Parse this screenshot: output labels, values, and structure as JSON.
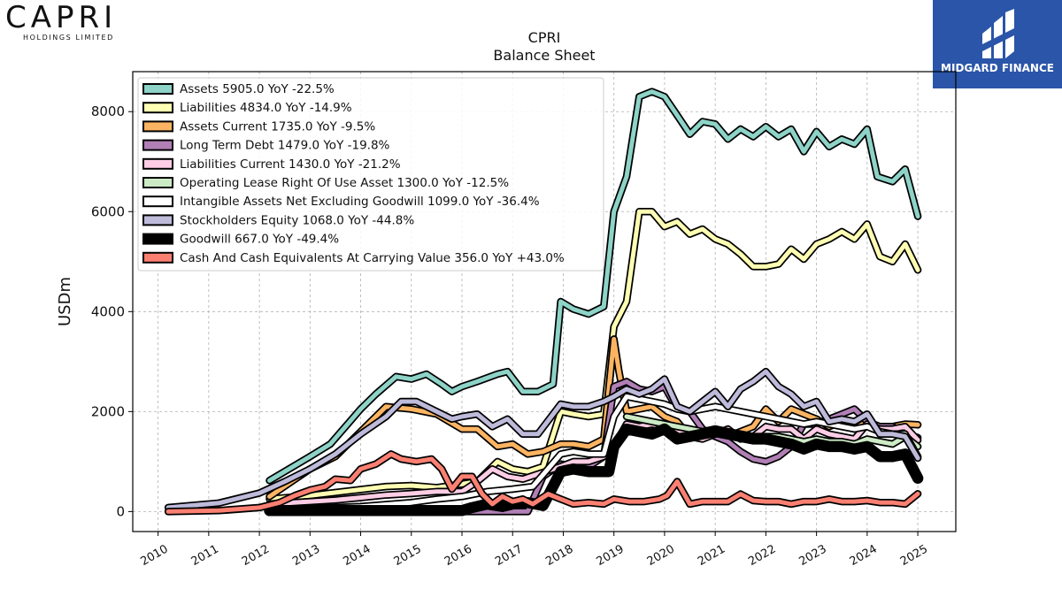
{
  "branding": {
    "company_name": "CAPRI",
    "company_sub": "HOLDINGS LIMITED",
    "publisher": "MIDGARD FINANCE"
  },
  "chart_data": {
    "type": "line",
    "title": "CPRI",
    "subtitle": "Balance  Sheet",
    "ylabel": "USDm",
    "xlabel": "",
    "ylim": [
      -400,
      8800
    ],
    "xlim": [
      2009.5,
      2025.75
    ],
    "yticks": [
      0,
      2000,
      4000,
      6000,
      8000
    ],
    "xticks": [
      2010,
      2011,
      2012,
      2013,
      2014,
      2015,
      2016,
      2017,
      2018,
      2019,
      2020,
      2021,
      2022,
      2023,
      2024,
      2025
    ],
    "grid": true,
    "legend_position": "top-left",
    "series": [
      {
        "name": "Assets",
        "legend": "Assets  5905.0 YoY -22.5%",
        "color": "#8dd3c7",
        "width": 5,
        "x": [
          2012.2,
          2013.0,
          2013.4,
          2013.7,
          2014.0,
          2014.3,
          2014.7,
          2015.0,
          2015.3,
          2015.6,
          2015.8,
          2016.0,
          2016.3,
          2016.7,
          2016.9,
          2017.2,
          2017.5,
          2017.8,
          2017.95,
          2018.2,
          2018.5,
          2018.8,
          2019.0,
          2019.25,
          2019.5,
          2019.75,
          2020.0,
          2020.2,
          2020.5,
          2020.75,
          2021.0,
          2021.25,
          2021.5,
          2021.75,
          2022.0,
          2022.25,
          2022.5,
          2022.75,
          2023.0,
          2023.25,
          2023.5,
          2023.75,
          2024.0,
          2024.2,
          2024.5,
          2024.75,
          2025.0
        ],
        "y": [
          620,
          1100,
          1350,
          1700,
          2050,
          2350,
          2700,
          2650,
          2750,
          2550,
          2400,
          2500,
          2600,
          2750,
          2800,
          2400,
          2400,
          2550,
          4200,
          4050,
          3950,
          4100,
          6000,
          6700,
          8300,
          8400,
          8300,
          8000,
          7550,
          7800,
          7750,
          7450,
          7650,
          7500,
          7700,
          7500,
          7650,
          7200,
          7600,
          7300,
          7450,
          7350,
          7650,
          6700,
          6600,
          6850,
          5905
        ]
      },
      {
        "name": "Liabilities",
        "legend": "Liabilities  4834.0 YoY -14.9%",
        "color": "#ffffb3",
        "width": 5,
        "x": [
          2012.2,
          2013.0,
          2013.5,
          2014.0,
          2014.5,
          2015.0,
          2015.5,
          2016.0,
          2016.3,
          2016.7,
          2017.0,
          2017.3,
          2017.6,
          2017.95,
          2018.2,
          2018.5,
          2018.8,
          2019.0,
          2019.25,
          2019.5,
          2019.75,
          2020.0,
          2020.25,
          2020.5,
          2020.75,
          2021.0,
          2021.25,
          2021.5,
          2021.75,
          2022.0,
          2022.25,
          2022.5,
          2022.75,
          2023.0,
          2023.25,
          2023.5,
          2023.75,
          2024.0,
          2024.25,
          2024.5,
          2024.75,
          2025.0
        ],
        "y": [
          250,
          320,
          380,
          440,
          500,
          520,
          480,
          550,
          600,
          1000,
          850,
          800,
          900,
          2000,
          1950,
          1900,
          1950,
          3700,
          4200,
          6000,
          6000,
          5700,
          5800,
          5550,
          5650,
          5450,
          5350,
          5150,
          4900,
          4900,
          4950,
          5250,
          5050,
          5350,
          5450,
          5600,
          5450,
          5750,
          5100,
          5000,
          5350,
          4834
        ]
      },
      {
        "name": "Assets Current",
        "legend": "Assets Current  1735.0 YoY -9.5%",
        "color": "#fdb462",
        "width": 5,
        "x": [
          2012.2,
          2013.0,
          2013.5,
          2014.0,
          2014.5,
          2015.0,
          2015.5,
          2016.0,
          2016.3,
          2016.7,
          2017.0,
          2017.3,
          2017.6,
          2017.95,
          2018.2,
          2018.5,
          2018.8,
          2019.0,
          2019.1,
          2019.25,
          2019.5,
          2019.75,
          2020.0,
          2020.25,
          2020.5,
          2020.75,
          2021.0,
          2021.25,
          2021.5,
          2021.75,
          2022.0,
          2022.25,
          2022.5,
          2022.75,
          2023.0,
          2023.25,
          2023.5,
          2023.75,
          2024.0,
          2024.25,
          2024.5,
          2024.75,
          2025.0
        ],
        "y": [
          300,
          850,
          1100,
          1600,
          2100,
          2050,
          1950,
          1650,
          1650,
          1300,
          1350,
          1150,
          1200,
          1350,
          1350,
          1300,
          1450,
          3450,
          2800,
          2000,
          2050,
          2100,
          1900,
          1800,
          1500,
          1550,
          1650,
          1500,
          1600,
          1700,
          2050,
          1800,
          2050,
          1950,
          1850,
          1700,
          1800,
          1650,
          1800,
          1600,
          1700,
          1750,
          1735
        ]
      },
      {
        "name": "Long Term Debt",
        "legend": "Long Term Debt  1479.0 YoY -19.8%",
        "color": "#b07fb5",
        "width": 5,
        "x": [
          2012.2,
          2013.0,
          2014.0,
          2015.0,
          2016.0,
          2016.5,
          2017.0,
          2017.3,
          2017.6,
          2017.95,
          2018.2,
          2018.5,
          2018.8,
          2018.9,
          2019.0,
          2019.25,
          2019.5,
          2019.75,
          2020.0,
          2020.25,
          2020.5,
          2020.75,
          2021.0,
          2021.25,
          2021.5,
          2021.75,
          2022.0,
          2022.25,
          2022.5,
          2022.75,
          2023.0,
          2023.25,
          2023.5,
          2023.75,
          2024.0,
          2024.25,
          2024.5,
          2024.75,
          2025.0
        ],
        "y": [
          0,
          0,
          0,
          0,
          0,
          0,
          0,
          0,
          700,
          950,
          900,
          900,
          1100,
          1800,
          2500,
          2600,
          2450,
          2400,
          2500,
          2050,
          2000,
          1650,
          1500,
          1400,
          1200,
          1050,
          1000,
          1100,
          1300,
          1750,
          1750,
          1850,
          1950,
          2050,
          1800,
          1700,
          1700,
          1550,
          1479
        ]
      },
      {
        "name": "Liabilities Current",
        "legend": "Liabilities Current  1430.0 YoY -21.2%",
        "color": "#fccde5",
        "width": 5,
        "x": [
          2012.2,
          2013.0,
          2013.5,
          2014.0,
          2014.5,
          2015.0,
          2015.5,
          2016.0,
          2016.3,
          2016.6,
          2016.9,
          2017.2,
          2017.5,
          2017.95,
          2018.2,
          2018.5,
          2018.8,
          2019.0,
          2019.25,
          2019.5,
          2019.75,
          2020.0,
          2020.25,
          2020.5,
          2020.75,
          2021.0,
          2021.25,
          2021.5,
          2021.75,
          2022.0,
          2022.25,
          2022.5,
          2022.75,
          2023.0,
          2023.25,
          2023.5,
          2023.75,
          2024.0,
          2024.25,
          2024.5,
          2024.75,
          2025.0
        ],
        "y": [
          150,
          200,
          230,
          280,
          330,
          360,
          400,
          400,
          600,
          850,
          700,
          650,
          750,
          900,
          1000,
          1000,
          1100,
          1300,
          1750,
          1700,
          1750,
          1700,
          1650,
          1500,
          1450,
          1550,
          1650,
          1450,
          1500,
          1700,
          1650,
          1650,
          1450,
          1650,
          1550,
          1500,
          1450,
          1750,
          1650,
          1650,
          1700,
          1430
        ]
      },
      {
        "name": "Operating Lease Right Of Use Asset",
        "legend": "Operating Lease Right Of Use Asset  1300.0 YoY -12.5%",
        "color": "#ccebc5",
        "width": 5,
        "x": [
          2019.25,
          2019.5,
          2019.75,
          2020.0,
          2020.25,
          2020.5,
          2020.75,
          2021.0,
          2021.25,
          2021.5,
          2021.75,
          2022.0,
          2022.25,
          2022.5,
          2022.75,
          2023.0,
          2023.25,
          2023.5,
          2023.75,
          2024.0,
          2024.25,
          2024.5,
          2024.75,
          2025.0
        ],
        "y": [
          1900,
          1850,
          1800,
          1750,
          1700,
          1650,
          1600,
          1650,
          1600,
          1550,
          1500,
          1500,
          1500,
          1450,
          1400,
          1450,
          1400,
          1400,
          1350,
          1450,
          1400,
          1350,
          1500,
          1300
        ]
      },
      {
        "name": "Intangible Assets Net Excluding Goodwill",
        "legend": "Intangible Assets Net Excluding Goodwill  1099.0 YoY -36.4%",
        "color": "#ffffff",
        "width": 5,
        "x": [
          2012.2,
          2013.0,
          2014.0,
          2015.0,
          2015.5,
          2016.0,
          2016.5,
          2017.0,
          2017.4,
          2017.95,
          2018.2,
          2018.5,
          2018.8,
          2019.0,
          2019.25,
          2019.5,
          2019.75,
          2020.0,
          2020.25,
          2020.5,
          2020.75,
          2021.0,
          2021.25,
          2021.5,
          2021.75,
          2022.0,
          2022.25,
          2022.5,
          2022.75,
          2023.0,
          2023.25,
          2023.5,
          2023.75,
          2024.0,
          2024.25,
          2024.5,
          2024.75,
          2025.0
        ],
        "y": [
          30,
          60,
          100,
          180,
          250,
          300,
          400,
          450,
          500,
          1150,
          1200,
          1150,
          1150,
          1900,
          2300,
          2250,
          2200,
          2150,
          2050,
          2000,
          2050,
          2100,
          2050,
          2000,
          1950,
          1900,
          1850,
          1800,
          1750,
          1800,
          1750,
          1700,
          1650,
          1700,
          1600,
          1550,
          1550,
          1099
        ]
      },
      {
        "name": "Stockholders Equity",
        "legend": "Stockholders Equity  1068.0 YoY -44.8%",
        "color": "#bebada",
        "width": 5,
        "x": [
          2010.2,
          2011.2,
          2012.0,
          2012.5,
          2013.0,
          2013.5,
          2014.0,
          2014.5,
          2014.8,
          2015.1,
          2015.4,
          2015.8,
          2016.0,
          2016.3,
          2016.6,
          2016.9,
          2017.2,
          2017.5,
          2017.95,
          2018.2,
          2018.5,
          2018.8,
          2019.0,
          2019.25,
          2019.5,
          2019.75,
          2020.0,
          2020.25,
          2020.5,
          2020.75,
          2021.0,
          2021.25,
          2021.5,
          2021.75,
          2022.0,
          2022.25,
          2022.5,
          2022.75,
          2023.0,
          2023.25,
          2023.5,
          2023.75,
          2024.0,
          2024.25,
          2024.5,
          2024.75,
          2025.0
        ],
        "y": [
          80,
          170,
          370,
          600,
          850,
          1150,
          1550,
          1900,
          2200,
          2200,
          2050,
          1850,
          1900,
          1950,
          1700,
          1850,
          1550,
          1550,
          2150,
          2100,
          2100,
          2200,
          2300,
          2450,
          2350,
          2450,
          2650,
          2100,
          2000,
          2200,
          2400,
          2100,
          2450,
          2600,
          2800,
          2500,
          2350,
          2100,
          2200,
          1800,
          1850,
          1800,
          1950,
          1550,
          1550,
          1500,
          1068
        ]
      },
      {
        "name": "Goodwill",
        "legend": "Goodwill  667.0 YoY -49.4%",
        "color": "#000000",
        "width": 9,
        "x": [
          2012.2,
          2013.0,
          2014.0,
          2015.0,
          2015.5,
          2016.0,
          2016.2,
          2016.5,
          2016.8,
          2017.0,
          2017.3,
          2017.6,
          2017.95,
          2018.2,
          2018.5,
          2018.8,
          2018.9,
          2019.0,
          2019.25,
          2019.5,
          2019.75,
          2020.0,
          2020.25,
          2020.5,
          2020.75,
          2021.0,
          2021.25,
          2021.5,
          2021.75,
          2022.0,
          2022.25,
          2022.5,
          2022.75,
          2023.0,
          2023.25,
          2023.5,
          2023.75,
          2024.0,
          2024.25,
          2024.5,
          2024.75,
          2025.0
        ],
        "y": [
          20,
          20,
          20,
          20,
          20,
          20,
          80,
          150,
          100,
          150,
          180,
          120,
          800,
          850,
          800,
          800,
          800,
          1300,
          1650,
          1600,
          1550,
          1650,
          1450,
          1500,
          1550,
          1600,
          1550,
          1500,
          1450,
          1450,
          1400,
          1350,
          1250,
          1350,
          1300,
          1300,
          1250,
          1300,
          1100,
          1100,
          1150,
          667
        ]
      },
      {
        "name": "Cash And Cash Equivalents At Carrying Value",
        "legend": "Cash And Cash Equivalents At Carrying Value  356.0 YoY +43.0%",
        "color": "#fb8072",
        "width": 5,
        "x": [
          2010.2,
          2011.2,
          2012.0,
          2012.4,
          2012.7,
          2013.0,
          2013.3,
          2013.5,
          2013.8,
          2014.0,
          2014.3,
          2014.6,
          2014.8,
          2015.1,
          2015.4,
          2015.6,
          2015.8,
          2016.0,
          2016.2,
          2016.4,
          2016.6,
          2016.8,
          2017.0,
          2017.2,
          2017.4,
          2017.7,
          2017.95,
          2018.2,
          2018.5,
          2018.8,
          2019.0,
          2019.3,
          2019.6,
          2019.9,
          2020.05,
          2020.25,
          2020.5,
          2020.75,
          2021.0,
          2021.25,
          2021.5,
          2021.75,
          2022.0,
          2022.25,
          2022.5,
          2022.75,
          2023.0,
          2023.25,
          2023.5,
          2023.75,
          2024.0,
          2024.25,
          2024.5,
          2024.75,
          2025.0
        ],
        "y": [
          0,
          20,
          80,
          180,
          320,
          430,
          500,
          650,
          620,
          850,
          950,
          1150,
          1050,
          1000,
          1050,
          850,
          450,
          700,
          700,
          350,
          150,
          300,
          200,
          250,
          150,
          350,
          250,
          150,
          180,
          150,
          250,
          200,
          200,
          250,
          320,
          600,
          150,
          200,
          200,
          200,
          350,
          220,
          200,
          200,
          150,
          200,
          200,
          250,
          200,
          200,
          220,
          180,
          180,
          150,
          356
        ]
      }
    ]
  }
}
